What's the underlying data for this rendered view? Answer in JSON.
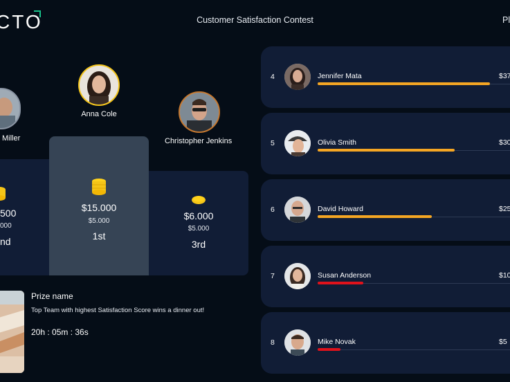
{
  "header": {
    "logo": "CTO",
    "title": "Customer Satisfaction Contest",
    "top_right": "Pl"
  },
  "podium": {
    "second": {
      "name": "Miller",
      "amount": "500",
      "sub": "000",
      "rank": "nd"
    },
    "first": {
      "name": "Anna Cole",
      "amount": "$15.000",
      "sub": "$5.000",
      "rank": "1st"
    },
    "third": {
      "name": "Christopher Jenkins",
      "amount": "$6.000",
      "sub": "$5.000",
      "rank": "3rd"
    }
  },
  "prize": {
    "title": "Prize name",
    "description": "Top Team with highest Satisfaction Score wins a dinner out!",
    "timer": "20h : 05m : 36s"
  },
  "leaderboard": [
    {
      "rank": "4",
      "name": "Jennifer Mata",
      "amount": "$37",
      "progress": 0.83,
      "color": "#f5a623"
    },
    {
      "rank": "5",
      "name": "Olivia Smith",
      "amount": "$30",
      "progress": 0.66,
      "color": "#f5a623"
    },
    {
      "rank": "6",
      "name": "David Howard",
      "amount": "$25",
      "progress": 0.55,
      "color": "#f5a623"
    },
    {
      "rank": "7",
      "name": "Susan Anderson",
      "amount": "$10",
      "progress": 0.22,
      "color": "#e0121b"
    },
    {
      "rank": "8",
      "name": "Mike Novak",
      "amount": "$5",
      "progress": 0.11,
      "color": "#e0121b"
    }
  ],
  "colors": {
    "background": "#050d17",
    "card": "#111d36",
    "gold": "#f5c518",
    "highlight": "#364455"
  }
}
